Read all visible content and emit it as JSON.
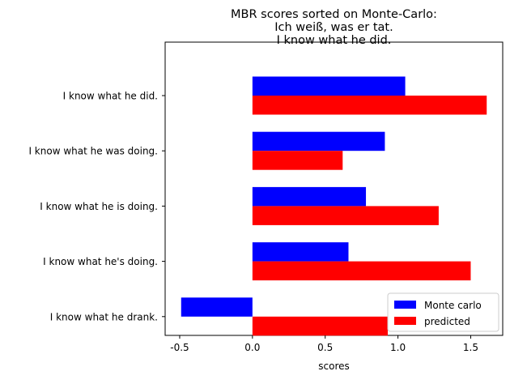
{
  "chart_data": {
    "type": "bar",
    "orientation": "horizontal",
    "title": "MBR scores sorted on Monte-Carlo:\nIch weiß, was er tat.\nI know what he did.",
    "title_lines": [
      "MBR scores sorted on Monte-Carlo:",
      "Ich weiß, was er tat.",
      "I know what he did."
    ],
    "xlabel": "scores",
    "ylabel": "",
    "xlim": [
      -0.6,
      1.72
    ],
    "xticks": [
      -0.5,
      0.0,
      0.5,
      1.0,
      1.5
    ],
    "xtick_labels": [
      "-0.5",
      "0.0",
      "0.5",
      "1.0",
      "1.5"
    ],
    "categories": [
      "I know what he did.",
      "I know what he was doing.",
      "I know what he is doing.",
      "I know what he's doing.",
      "I know what he drank."
    ],
    "series": [
      {
        "name": "Monte carlo",
        "color": "#0000ff",
        "values": [
          1.05,
          0.91,
          0.78,
          0.66,
          -0.49
        ]
      },
      {
        "name": "predicted",
        "color": "#ff0000",
        "values": [
          1.61,
          0.62,
          1.28,
          1.5,
          0.93
        ]
      }
    ],
    "grid": false,
    "legend_position": "lower-right"
  }
}
